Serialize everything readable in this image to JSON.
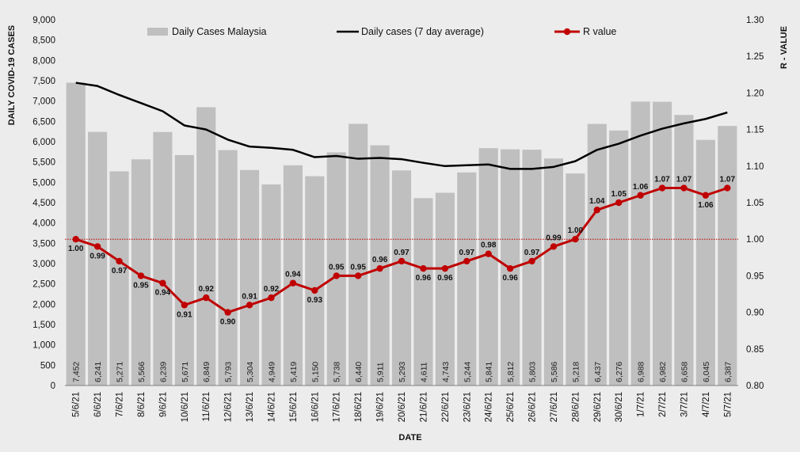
{
  "chart_data": {
    "type": "bar",
    "xlabel": "DATE",
    "ylabel": "DAILY COVID-19 CASES",
    "y2label": "R - VALUE",
    "ylim": [
      0,
      9000
    ],
    "y2lim": [
      0.8,
      1.3
    ],
    "yticks": [
      "0",
      "500",
      "1,000",
      "1,500",
      "2,000",
      "2,500",
      "3,000",
      "3,500",
      "4,000",
      "4,500",
      "5,000",
      "5,500",
      "6,000",
      "6,500",
      "7,000",
      "7,500",
      "8,000",
      "8,500",
      "9,000"
    ],
    "y2ticks": [
      "0.80",
      "0.85",
      "0.90",
      "0.95",
      "1.00",
      "1.05",
      "1.10",
      "1.15",
      "1.20",
      "1.25",
      "1.30"
    ],
    "categories": [
      "5/6/21",
      "6/6/21",
      "7/6/21",
      "8/6/21",
      "9/6/21",
      "10/6/21",
      "11/6/21",
      "12/6/21",
      "13/6/21",
      "14/6/21",
      "15/6/21",
      "16/6/21",
      "17/6/21",
      "18/6/21",
      "19/6/21",
      "20/6/21",
      "21/6/21",
      "22/6/21",
      "23/6/21",
      "24/6/21",
      "25/6/21",
      "26/6/21",
      "27/6/21",
      "28/6/21",
      "29/6/21",
      "30/6/21",
      "1/7/21",
      "2/7/21",
      "3/7/21",
      "4/7/21",
      "5/7/21"
    ],
    "series": [
      {
        "name": "Daily Cases Malaysia",
        "type": "bar",
        "axis": "left",
        "color": "#bfbfbf",
        "values": [
          7452,
          6241,
          5271,
          5566,
          6239,
          5671,
          6849,
          5793,
          5304,
          4949,
          5419,
          5150,
          5738,
          6440,
          5911,
          5293,
          4611,
          4743,
          5244,
          5841,
          5812,
          5803,
          5586,
          5218,
          6437,
          6276,
          6988,
          6982,
          6658,
          6045,
          6387
        ],
        "labels": [
          "7,452",
          "6,241",
          "5,271",
          "5,566",
          "6,239",
          "5,671",
          "6,849",
          "5,793",
          "5,304",
          "4,949",
          "5,419",
          "5,150",
          "5,738",
          "6,440",
          "5,911",
          "5,293",
          "4,611",
          "4,743",
          "5,244",
          "5,841",
          "5,812",
          "5,803",
          "5,586",
          "5,218",
          "6,437",
          "6,276",
          "6,988",
          "6,982",
          "6,658",
          "6,045",
          "6,387"
        ]
      },
      {
        "name": "Daily cases (7 day average)",
        "type": "line",
        "axis": "left",
        "color": "#000000",
        "values": [
          7450,
          7370,
          7150,
          6950,
          6750,
          6400,
          6300,
          6050,
          5880,
          5850,
          5800,
          5620,
          5650,
          5580,
          5600,
          5570,
          5480,
          5400,
          5420,
          5440,
          5330,
          5330,
          5380,
          5520,
          5800,
          5950,
          6150,
          6320,
          6450,
          6560,
          6720
        ]
      },
      {
        "name": "R value",
        "type": "line",
        "axis": "right",
        "color": "#c00000",
        "values": [
          1.0,
          0.99,
          0.97,
          0.95,
          0.94,
          0.91,
          0.92,
          0.9,
          0.91,
          0.92,
          0.94,
          0.93,
          0.95,
          0.95,
          0.96,
          0.97,
          0.96,
          0.96,
          0.97,
          0.98,
          0.96,
          0.97,
          0.99,
          1.0,
          1.04,
          1.05,
          1.06,
          1.07,
          1.07,
          1.06,
          1.07
        ],
        "labels": [
          "1.00",
          "0.99",
          "0.97",
          "0.95",
          "0.94",
          "0.91",
          "0.92",
          "0.90",
          "0.91",
          "0.92",
          "0.94",
          "0.93",
          "0.95",
          "0.95",
          "0.96",
          "0.97",
          "0.96",
          "0.96",
          "0.97",
          "0.98",
          "0.96",
          "0.97",
          "0.99",
          "1.00",
          "1.04",
          "1.05",
          "1.06",
          "1.07",
          "1.07",
          "1.06",
          "1.07"
        ]
      }
    ],
    "reference_line": {
      "axis": "right",
      "value": 1.0,
      "style": "dotted",
      "color": "#c00000"
    },
    "legend_position": "top",
    "grid": false
  }
}
